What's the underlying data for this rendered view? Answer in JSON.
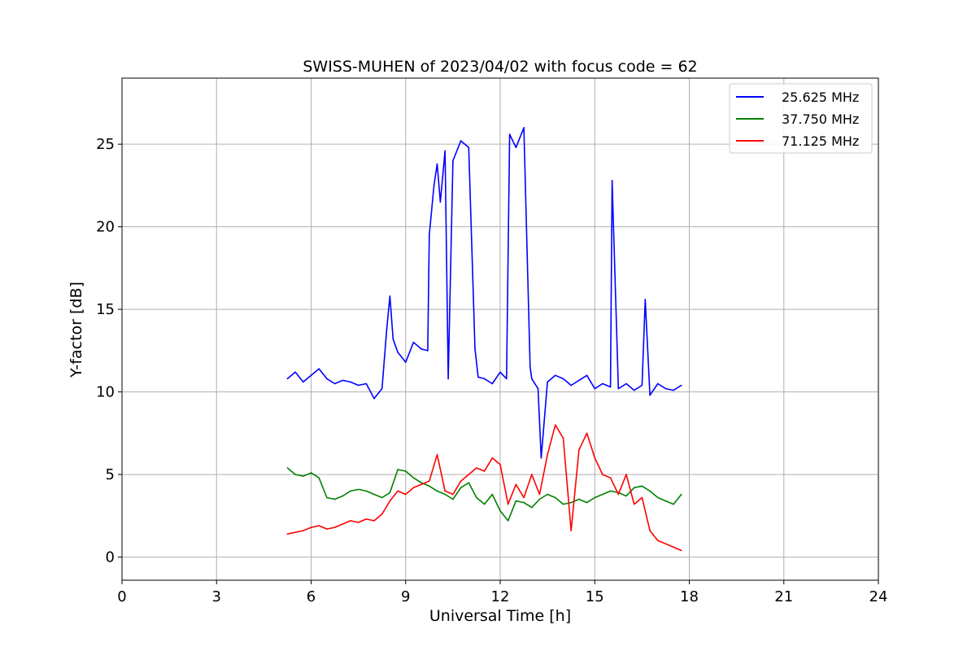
{
  "chart_data": {
    "type": "line",
    "title": "SWISS-MUHEN of 2023/04/02 with focus code = 62",
    "xlabel": "Universal Time [h]",
    "ylabel": "Y-factor [dB]",
    "xlim": [
      0,
      24
    ],
    "ylim": [
      -1.4,
      29
    ],
    "xticks": [
      0,
      3,
      6,
      9,
      12,
      15,
      18,
      21,
      24
    ],
    "xtick_labels": [
      "0",
      "3",
      "6",
      "9",
      "12",
      "15",
      "18",
      "21",
      "24"
    ],
    "yticks": [
      0,
      5,
      10,
      15,
      20,
      25
    ],
    "ytick_labels": [
      "0",
      "5",
      "10",
      "15",
      "20",
      "25"
    ],
    "grid": true,
    "legend_position": "top-right",
    "series": [
      {
        "name": "25.625 MHz",
        "color": "#0000ff",
        "x": [
          5.25,
          5.5,
          5.75,
          6.0,
          6.25,
          6.5,
          6.75,
          7.0,
          7.25,
          7.5,
          7.75,
          8.0,
          8.25,
          8.4,
          8.5,
          8.6,
          8.75,
          9.0,
          9.25,
          9.5,
          9.7,
          9.75,
          9.9,
          10.0,
          10.1,
          10.25,
          10.35,
          10.5,
          10.75,
          11.0,
          11.2,
          11.3,
          11.5,
          11.75,
          12.0,
          12.2,
          12.3,
          12.5,
          12.75,
          12.95,
          13.0,
          13.2,
          13.3,
          13.5,
          13.75,
          14.0,
          14.25,
          14.5,
          14.75,
          15.0,
          15.25,
          15.5,
          15.55,
          15.75,
          16.0,
          16.25,
          16.5,
          16.6,
          16.75,
          17.0,
          17.25,
          17.5,
          17.75
        ],
        "y": [
          10.8,
          11.2,
          10.6,
          11.0,
          11.4,
          10.8,
          10.5,
          10.7,
          10.6,
          10.4,
          10.5,
          9.6,
          10.2,
          13.8,
          15.8,
          13.2,
          12.4,
          11.8,
          13.0,
          12.6,
          12.5,
          19.5,
          22.5,
          23.8,
          21.5,
          24.6,
          10.8,
          24.0,
          25.2,
          24.8,
          12.6,
          10.9,
          10.8,
          10.5,
          11.2,
          10.8,
          25.6,
          24.8,
          26.0,
          11.5,
          10.8,
          10.2,
          6.0,
          10.6,
          11.0,
          10.8,
          10.4,
          10.7,
          11.0,
          10.2,
          10.5,
          10.3,
          22.8,
          10.2,
          10.5,
          10.1,
          10.4,
          15.6,
          9.8,
          10.5,
          10.2,
          10.1,
          10.4
        ]
      },
      {
        "name": "37.750 MHz",
        "color": "#008000",
        "x": [
          5.25,
          5.5,
          5.75,
          6.0,
          6.25,
          6.5,
          6.75,
          7.0,
          7.25,
          7.5,
          7.75,
          8.0,
          8.25,
          8.5,
          8.75,
          9.0,
          9.25,
          9.5,
          9.75,
          10.0,
          10.25,
          10.5,
          10.75,
          11.0,
          11.25,
          11.5,
          11.75,
          12.0,
          12.25,
          12.5,
          12.75,
          13.0,
          13.25,
          13.5,
          13.75,
          14.0,
          14.25,
          14.5,
          14.75,
          15.0,
          15.25,
          15.5,
          15.75,
          16.0,
          16.25,
          16.5,
          16.75,
          17.0,
          17.25,
          17.5,
          17.75
        ],
        "y": [
          5.4,
          5.0,
          4.9,
          5.1,
          4.8,
          3.6,
          3.5,
          3.7,
          4.0,
          4.1,
          4.0,
          3.8,
          3.6,
          3.9,
          5.3,
          5.2,
          4.8,
          4.5,
          4.3,
          4.0,
          3.8,
          3.5,
          4.2,
          4.5,
          3.6,
          3.2,
          3.8,
          2.8,
          2.2,
          3.4,
          3.3,
          3.0,
          3.5,
          3.8,
          3.6,
          3.2,
          3.3,
          3.5,
          3.3,
          3.6,
          3.8,
          4.0,
          3.9,
          3.7,
          4.2,
          4.3,
          4.0,
          3.6,
          3.4,
          3.2,
          3.8
        ]
      },
      {
        "name": "71.125 MHz",
        "color": "#ff0000",
        "x": [
          5.25,
          5.5,
          5.75,
          6.0,
          6.25,
          6.5,
          6.75,
          7.0,
          7.25,
          7.5,
          7.75,
          8.0,
          8.25,
          8.5,
          8.75,
          9.0,
          9.25,
          9.5,
          9.75,
          10.0,
          10.25,
          10.5,
          10.75,
          11.0,
          11.25,
          11.5,
          11.75,
          12.0,
          12.25,
          12.5,
          12.75,
          13.0,
          13.25,
          13.5,
          13.75,
          14.0,
          14.25,
          14.5,
          14.75,
          15.0,
          15.25,
          15.5,
          15.75,
          16.0,
          16.25,
          16.5,
          16.75,
          17.0,
          17.25,
          17.5,
          17.75
        ],
        "y": [
          1.4,
          1.5,
          1.6,
          1.8,
          1.9,
          1.7,
          1.8,
          2.0,
          2.2,
          2.1,
          2.3,
          2.2,
          2.6,
          3.4,
          4.0,
          3.8,
          4.2,
          4.4,
          4.6,
          6.2,
          4.0,
          3.8,
          4.6,
          5.0,
          5.4,
          5.2,
          6.0,
          5.6,
          3.2,
          4.4,
          3.6,
          5.0,
          3.8,
          6.2,
          8.0,
          7.2,
          1.6,
          6.5,
          7.5,
          6.0,
          5.0,
          4.8,
          3.8,
          5.0,
          3.2,
          3.6,
          1.6,
          1.0,
          0.8,
          0.6,
          0.4
        ]
      }
    ]
  }
}
